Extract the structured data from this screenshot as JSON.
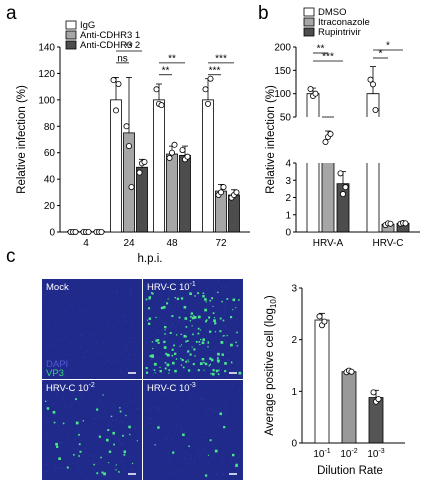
{
  "panels": {
    "a": "a",
    "b": "b",
    "c": "c"
  },
  "colors": {
    "white": "#ffffff",
    "light_gray": "#a6a6a6",
    "dark_gray": "#4d4d4d",
    "mid_gray": "#999999",
    "darker_gray": "#555555",
    "micrograph_blue": "#1f2a8a",
    "signal_green": "#4be88a"
  },
  "chart_data": [
    {
      "id": "a",
      "type": "bar",
      "categories": [
        "4",
        "24",
        "48",
        "72"
      ],
      "xlabel": "h.p.i.",
      "ylabel": "Relative infection (%)",
      "ylim": [
        0,
        140
      ],
      "yticks": [
        "0",
        "20",
        "40",
        "60",
        "80",
        "100",
        "120",
        "140"
      ],
      "legend_position": "top-left",
      "series": [
        {
          "name": "IgG",
          "color": "#ffffff",
          "values": [
            0.5,
            100,
            100,
            100
          ],
          "err": [
            0.5,
            17,
            12,
            16
          ],
          "points": [
            [
              0,
              0,
              0
            ],
            [
              115,
              92,
              112
            ],
            [
              108,
              97,
              96
            ],
            [
              108,
              97,
              116
            ]
          ]
        },
        {
          "name": "Anti-CDHR3 1",
          "color": "#a6a6a6",
          "values": [
            0.5,
            75,
            59,
            31
          ],
          "err": [
            0.5,
            42,
            6,
            5
          ],
          "points": [
            [
              0,
              0,
              0
            ],
            [
              80,
              65,
              34
            ],
            [
              56,
              60,
              66
            ],
            [
              28,
              30,
              34
            ]
          ]
        },
        {
          "name": "Anti-CDHR3 2",
          "color": "#4d4d4d",
          "values": [
            0.5,
            49,
            58,
            28
          ],
          "err": [
            0.5,
            6,
            7,
            4
          ],
          "points": [
            [
              0,
              0,
              0
            ],
            [
              45,
              52,
              53
            ],
            [
              62,
              55,
              57
            ],
            [
              26,
              28,
              30
            ]
          ]
        }
      ],
      "significance": [
        {
          "group": "24",
          "label": "ns",
          "from": 0,
          "to": 1
        },
        {
          "group": "24",
          "label": "**",
          "from": 0,
          "to": 2
        },
        {
          "group": "48",
          "label": "**",
          "from": 0,
          "to": 1
        },
        {
          "group": "48",
          "label": "**",
          "from": 0,
          "to": 2
        },
        {
          "group": "72",
          "label": "***",
          "from": 0,
          "to": 1
        },
        {
          "group": "72",
          "label": "***",
          "from": 0,
          "to": 2
        }
      ]
    },
    {
      "id": "b",
      "type": "bar",
      "categories": [
        "HRV-A",
        "HRV-C"
      ],
      "ylabel": "Relative infection (%)",
      "axis_break": {
        "lower": [
          0,
          4
        ],
        "upper": [
          50,
          200
        ]
      },
      "yticks_lower": [
        "0",
        "1",
        "2",
        "3",
        "4"
      ],
      "yticks_upper": [
        "50",
        "100",
        "150",
        "200"
      ],
      "legend_position": "top",
      "series": [
        {
          "name": "DMSO",
          "color": "#ffffff",
          "values": [
            100,
            100
          ],
          "err": [
            12,
            58
          ],
          "points": [
            [
              110,
              95,
              100
            ],
            [
              130,
              120,
              65
            ]
          ]
        },
        {
          "name": "Itraconazole",
          "color": "#a6a6a6",
          "values": [
            28,
            0.45
          ],
          "err": [
            8,
            0.1
          ],
          "points": [
            [
              25,
              30,
              33
            ],
            [
              0.4,
              0.5,
              0.48
            ]
          ]
        },
        {
          "name": "Rupintrivir",
          "color": "#4d4d4d",
          "values": [
            2.8,
            0.5
          ],
          "err": [
            0.7,
            0.08
          ],
          "points": [
            [
              3.4,
              2.2,
              2.6
            ],
            [
              0.48,
              0.52,
              0.5
            ]
          ]
        }
      ],
      "significance": [
        {
          "group": "HRV-A",
          "label": "**",
          "from": 0,
          "to": 1
        },
        {
          "group": "HRV-A",
          "label": "***",
          "from": 0,
          "to": 2
        },
        {
          "group": "HRV-C",
          "label": "*",
          "from": 0,
          "to": 1
        },
        {
          "group": "HRV-C",
          "label": "*",
          "from": 0,
          "to": 2
        }
      ]
    },
    {
      "id": "c",
      "type": "bar",
      "categories": [
        "10-1",
        "10-2",
        "10-3"
      ],
      "category_labels": [
        {
          "base": "10",
          "exp": "-1"
        },
        {
          "base": "10",
          "exp": "-2"
        },
        {
          "base": "10",
          "exp": "-3"
        }
      ],
      "xlabel": "Dilution Rate",
      "ylabel_prefix": "Average positive cell (log",
      "ylabel_sub": "10",
      "ylabel_suffix": ")",
      "ylim": [
        0,
        3
      ],
      "yticks": [
        "0",
        "1",
        "2",
        "3"
      ],
      "series": [
        {
          "colors": [
            "#ffffff",
            "#999999",
            "#555555"
          ],
          "values": [
            2.38,
            1.38,
            0.88
          ],
          "err": [
            0.13,
            0.05,
            0.14
          ],
          "points": [
            [
              2.45,
              2.28,
              2.35
            ],
            [
              1.37,
              1.4,
              1.38
            ],
            [
              0.98,
              0.8,
              0.85
            ]
          ]
        }
      ]
    }
  ],
  "micrographs": [
    {
      "label": "Mock",
      "sup": "",
      "density": 0,
      "seed": 3,
      "labels_extra": [
        "DAPI",
        "VP3"
      ]
    },
    {
      "label": "HRV-C 10",
      "sup": "-1",
      "density": 170,
      "seed": 11
    },
    {
      "label": "HRV-C 10",
      "sup": "-2",
      "density": 45,
      "seed": 23
    },
    {
      "label": "HRV-C 10",
      "sup": "-3",
      "density": 14,
      "seed": 37
    }
  ]
}
